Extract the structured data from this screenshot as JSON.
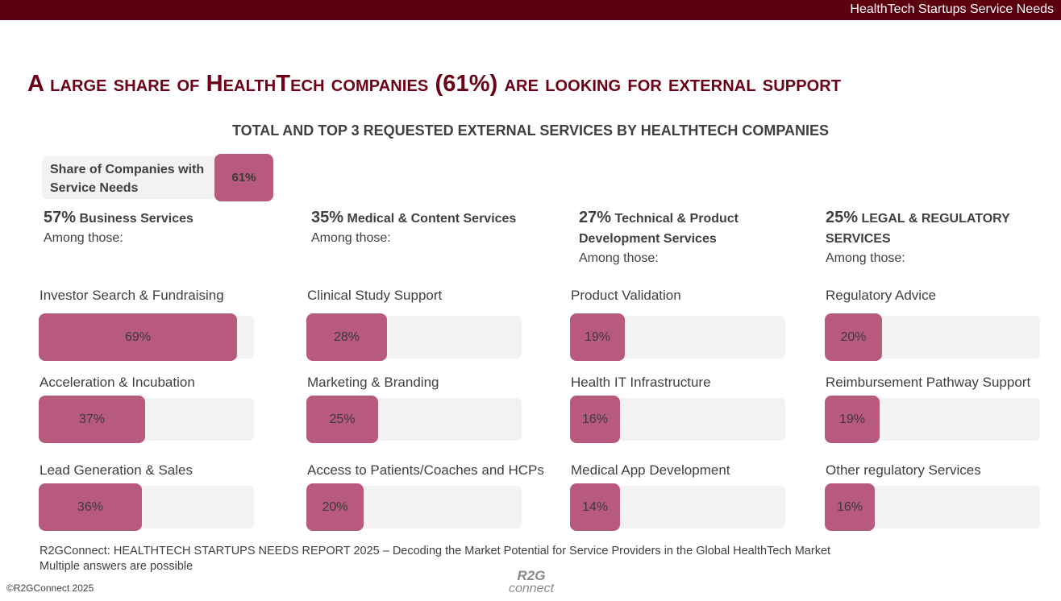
{
  "header": {
    "bar_text": "HealthTech Startups Service Needs",
    "headline": "A large share of HealthTech companies (61%) are looking for external support",
    "subtitle": "TOTAL AND TOP 3 REQUESTED EXTERNAL SERVICES BY HEALTHTECH COMPANIES"
  },
  "colors": {
    "bar": "#b85a7e",
    "track": "#f2f2f2",
    "top_bar": "#5c0010",
    "headline": "#6b0016"
  },
  "chart_data": {
    "type": "bar",
    "title": "TOTAL AND TOP 3 REQUESTED EXTERNAL SERVICES BY HEALTHTECH COMPANIES",
    "total": {
      "label": "Share of Companies with Service Needs",
      "value": 61,
      "value_label": "61%"
    },
    "categories": [
      {
        "pct_label": "57%",
        "pct": 57,
        "name": "Business Services",
        "among": "Among those:",
        "items": [
          {
            "label": "Investor Search & Fundraising",
            "value": 69,
            "value_label": "69%"
          },
          {
            "label": "Acceleration & Incubation",
            "value": 37,
            "value_label": "37%"
          },
          {
            "label": "Lead Generation & Sales",
            "value": 36,
            "value_label": "36%"
          }
        ]
      },
      {
        "pct_label": "35%",
        "pct": 35,
        "name": "Medical & Content Services",
        "among": "Among those:",
        "items": [
          {
            "label": "Clinical Study Support",
            "value": 28,
            "value_label": "28%"
          },
          {
            "label": "Marketing & Branding",
            "value": 25,
            "value_label": "25%"
          },
          {
            "label": "Access to Patients/Coaches and HCPs",
            "value": 20,
            "value_label": "20%"
          }
        ]
      },
      {
        "pct_label": "27%",
        "pct": 27,
        "name": "Technical & Product Development Services",
        "among": "Among those:",
        "items": [
          {
            "label": "Product Validation",
            "value": 19,
            "value_label": "19%"
          },
          {
            "label": "Health IT Infrastructure",
            "value": 16,
            "value_label": "16%"
          },
          {
            "label": "Medical App Development",
            "value": 14,
            "value_label": "14%"
          }
        ]
      },
      {
        "pct_label": "25%",
        "pct": 25,
        "name": "LEGAL & REGULATORY SERVICES",
        "among": "Among those:",
        "items": [
          {
            "label": "Regulatory Advice",
            "value": 20,
            "value_label": "20%"
          },
          {
            "label": "Reimbursement Pathway Support",
            "value": 19,
            "value_label": "19%"
          },
          {
            "label": "Other regulatory Services",
            "value": 16,
            "value_label": "16%"
          }
        ]
      }
    ]
  },
  "footer": {
    "source": "R2GConnect: HEALTHTECH STARTUPS NEEDS REPORT 2025 – Decoding the Market Potential for Service Providers in the Global HealthTech Market",
    "note": "Multiple answers are possible",
    "copyright": "©R2GConnect 2025",
    "logo_line1": "R2G",
    "logo_line2": "connect"
  }
}
